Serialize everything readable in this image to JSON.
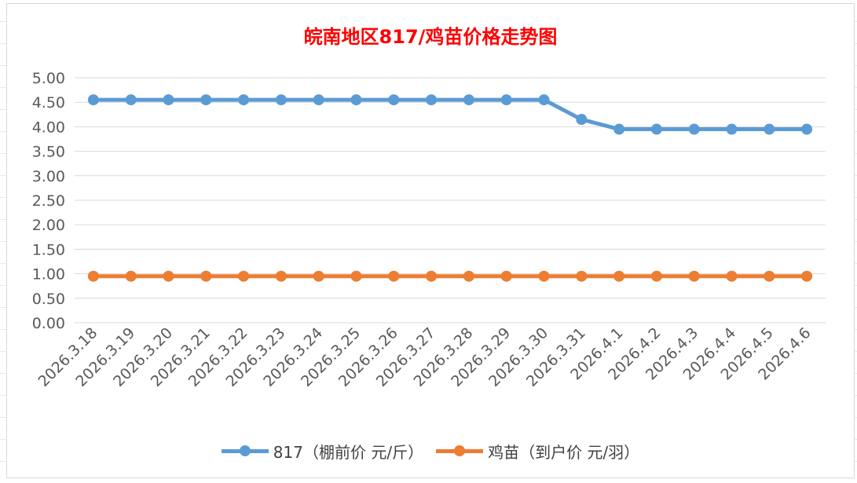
{
  "chart_data": {
    "type": "line",
    "title": "皖南地区817/鸡苗价格走势图",
    "categories": [
      "2026.3.18",
      "2026.3.19",
      "2026.3.20",
      "2026.3.21",
      "2026.3.22",
      "2026.3.23",
      "2026.3.24",
      "2026.3.25",
      "2026.3.26",
      "2026.3.27",
      "2026.3.28",
      "2026.3.29",
      "2026.3.30",
      "2026.3.31",
      "2026.4.1",
      "2026.4.2",
      "2026.4.3",
      "2026.4.4",
      "2026.4.5",
      "2026.4.6"
    ],
    "series": [
      {
        "name": "817（棚前价 元/斤）",
        "color": "#5b9bd5",
        "values": [
          4.55,
          4.55,
          4.55,
          4.55,
          4.55,
          4.55,
          4.55,
          4.55,
          4.55,
          4.55,
          4.55,
          4.55,
          4.55,
          4.15,
          3.95,
          3.95,
          3.95,
          3.95,
          3.95,
          3.95
        ]
      },
      {
        "name": "鸡苗（到户价 元/羽）",
        "color": "#ed7d31",
        "values": [
          0.95,
          0.95,
          0.95,
          0.95,
          0.95,
          0.95,
          0.95,
          0.95,
          0.95,
          0.95,
          0.95,
          0.95,
          0.95,
          0.95,
          0.95,
          0.95,
          0.95,
          0.95,
          0.95,
          0.95
        ]
      }
    ],
    "ylim": [
      0,
      5
    ],
    "yticks": [
      "0.00",
      "0.50",
      "1.00",
      "1.50",
      "2.00",
      "2.50",
      "3.00",
      "3.50",
      "4.00",
      "4.50",
      "5.00"
    ],
    "grid": true,
    "legend_position": "bottom"
  }
}
